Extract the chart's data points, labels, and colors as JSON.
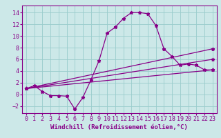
{
  "background_color": "#cce8e8",
  "line_color": "#880088",
  "grid_color": "#99cccc",
  "xlabel": "Windchill (Refroidissement éolien,°C)",
  "xlabel_fontsize": 6.5,
  "tick_fontsize": 6.0,
  "xlim": [
    -0.5,
    23.5
  ],
  "ylim": [
    -3.2,
    15.2
  ],
  "yticks": [
    -2,
    0,
    2,
    4,
    6,
    8,
    10,
    12,
    14
  ],
  "xticks": [
    0,
    1,
    2,
    3,
    4,
    5,
    6,
    7,
    8,
    9,
    10,
    11,
    12,
    13,
    14,
    15,
    16,
    17,
    18,
    19,
    20,
    21,
    22,
    23
  ],
  "line1_x": [
    0,
    1,
    2,
    3,
    4,
    5,
    6,
    7,
    8,
    9,
    10,
    11,
    12,
    13,
    14,
    15,
    16,
    17,
    18,
    19,
    20,
    21,
    22,
    23
  ],
  "line1_y": [
    1.0,
    1.5,
    0.5,
    -0.2,
    -0.2,
    -0.3,
    -2.5,
    -0.5,
    2.5,
    5.8,
    10.5,
    11.5,
    13.0,
    14.0,
    14.0,
    13.8,
    11.8,
    7.8,
    6.5,
    5.0,
    5.2,
    5.0,
    4.2,
    4.2
  ],
  "line2_x": [
    0,
    23
  ],
  "line2_y": [
    1.0,
    4.2
  ],
  "line3_x": [
    0,
    23
  ],
  "line3_y": [
    1.0,
    6.0
  ],
  "line4_x": [
    0,
    23
  ],
  "line4_y": [
    1.0,
    7.8
  ],
  "marker": "*",
  "marker_size": 3.5,
  "linewidth": 0.9
}
